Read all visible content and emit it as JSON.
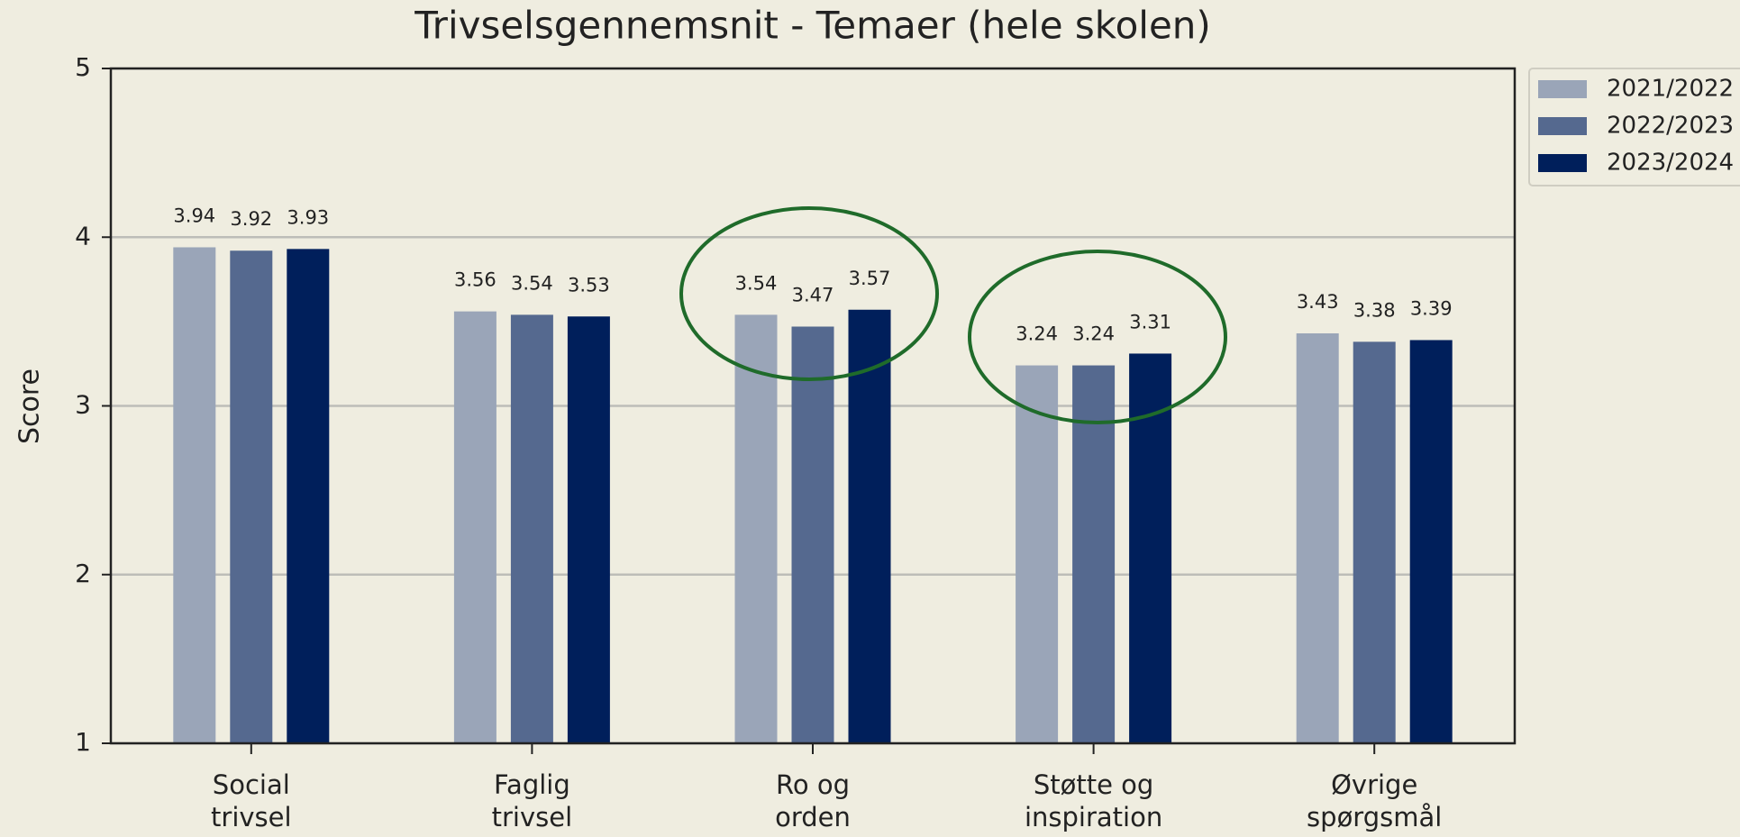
{
  "chart_data": {
    "type": "bar",
    "title": "Trivselsgennemsnit - Temaer (hele skolen)",
    "y_label": "Score",
    "categories": [
      [
        "Social",
        "trivsel"
      ],
      [
        "Faglig",
        "trivsel"
      ],
      [
        "Ro og",
        "orden"
      ],
      [
        "Støtte og",
        "inspiration"
      ],
      [
        "Øvrige",
        "spørgsmål"
      ]
    ],
    "series": [
      {
        "name": "2021/2022",
        "color": "#9aa5b8",
        "values": [
          3.94,
          3.56,
          3.54,
          3.24,
          3.43
        ]
      },
      {
        "name": "2022/2023",
        "color": "#55698f",
        "values": [
          3.92,
          3.54,
          3.47,
          3.24,
          3.38
        ]
      },
      {
        "name": "2023/2024",
        "color": "#001f5b",
        "values": [
          3.93,
          3.53,
          3.57,
          3.31,
          3.39
        ]
      }
    ],
    "ylim": [
      1,
      5
    ],
    "yticks": [
      1,
      2,
      3,
      4,
      5
    ],
    "grid": true,
    "legend": "outside right"
  }
}
